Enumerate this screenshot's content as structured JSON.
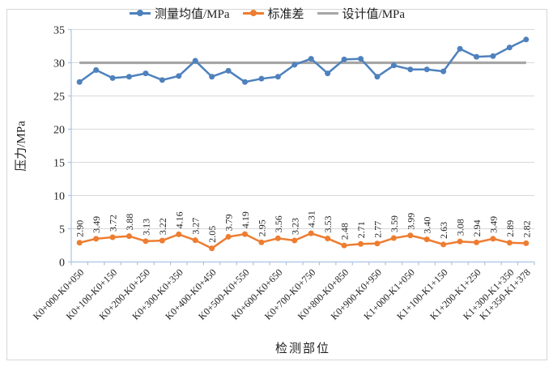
{
  "axis_titles": {
    "x": "检测部位",
    "y": "压力/MPa"
  },
  "chart_data": {
    "type": "line",
    "title": "",
    "xlabel": "检测部位",
    "ylabel": "压力/MPa",
    "ylim": [
      0,
      35
    ],
    "ytick_step": 5,
    "grid": true,
    "legend_position": "top",
    "n_points": 28,
    "x_tick_labels": [
      {
        "index": 0,
        "label": "K0+000-K0+050"
      },
      {
        "index": 2,
        "label": "K0+100-K0+150"
      },
      {
        "index": 4,
        "label": "K0+200-K0+250"
      },
      {
        "index": 6,
        "label": "K0+300-K0+350"
      },
      {
        "index": 8,
        "label": "K0+400-K0+450"
      },
      {
        "index": 10,
        "label": "K0+500-K0+550"
      },
      {
        "index": 12,
        "label": "K0+600-K0+650"
      },
      {
        "index": 14,
        "label": "K0+700-K0+750"
      },
      {
        "index": 16,
        "label": "K0+800-K0+850"
      },
      {
        "index": 18,
        "label": "K0+900-K0+950"
      },
      {
        "index": 20,
        "label": "K1+000-K1+050"
      },
      {
        "index": 22,
        "label": "K1+100-K1+150"
      },
      {
        "index": 24,
        "label": "K1+200-K1+250"
      },
      {
        "index": 26,
        "label": "K1+300-K1+350"
      },
      {
        "index": 27,
        "label": "K1+350-K1+378"
      }
    ],
    "series": [
      {
        "name": "测量均值/MPa",
        "kind": "line-markers",
        "color": "#4e81bd",
        "values": [
          27.1,
          28.9,
          27.7,
          27.9,
          28.4,
          27.4,
          28.0,
          30.3,
          27.9,
          28.8,
          27.1,
          27.6,
          27.9,
          29.7,
          30.6,
          28.4,
          30.5,
          30.6,
          27.9,
          29.6,
          29.0,
          29.0,
          28.7,
          32.1,
          30.9,
          31.0,
          32.3,
          33.5
        ]
      },
      {
        "name": "标准差",
        "kind": "line-markers",
        "color": "#ed7d31",
        "values": [
          2.9,
          3.49,
          3.72,
          3.88,
          3.13,
          3.22,
          4.16,
          3.27,
          2.05,
          3.79,
          4.19,
          2.95,
          3.56,
          3.23,
          4.31,
          3.53,
          2.48,
          2.71,
          2.77,
          3.59,
          3.99,
          3.4,
          2.63,
          3.08,
          2.94,
          3.49,
          2.89,
          2.82
        ],
        "data_labels": [
          "2.90",
          "3.49",
          "3.72",
          "3.88",
          "3.13",
          "3.22",
          "4.16",
          "3.27",
          "2.05",
          "3.79",
          "4.19",
          "2.95",
          "3.56",
          "3.23",
          "4.31",
          "3.53",
          "2.48",
          "2.71",
          "2.77",
          "3.59",
          "3.99",
          "3.40",
          "2.63",
          "3.08",
          "2.94",
          "3.49",
          "2.89",
          "2.82"
        ]
      },
      {
        "name": "设计值/MPa",
        "kind": "constant-line",
        "color": "#a6a6a6",
        "value": 30
      }
    ],
    "colors": {
      "axis": "#a9c5e2",
      "gridline": "#d9d9d9",
      "text": "#1f1f1f"
    }
  }
}
